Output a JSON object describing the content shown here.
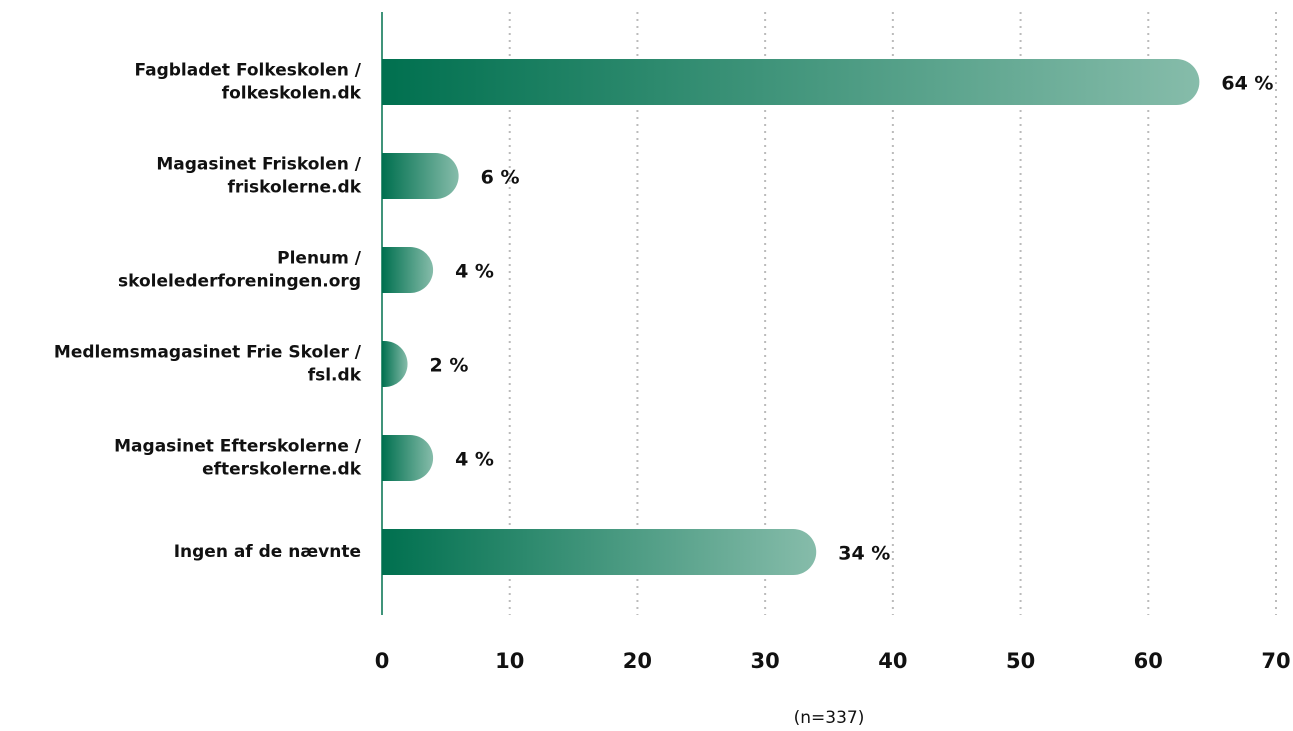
{
  "chart_data": {
    "type": "barh",
    "categories": [
      [
        "Fagbladet Folkeskolen /",
        "folkeskolen.dk"
      ],
      [
        "Magasinet Friskolen /",
        "friskolerne.dk"
      ],
      [
        "Plenum /",
        "skolelederforeningen.org"
      ],
      [
        "Medlemsmagasinet Frie Skoler /",
        "fsl.dk"
      ],
      [
        "Magasinet Efterskolerne /",
        "efterskolerne.dk"
      ],
      [
        "Ingen af de nævnte"
      ]
    ],
    "values": [
      64,
      6,
      4,
      2,
      4,
      34
    ],
    "value_labels": [
      "64 %",
      "6 %",
      "4 %",
      "2 %",
      "4 %",
      "34 %"
    ],
    "colors": [
      "#00704f",
      "#86bcaa"
    ],
    "xlim": [
      0,
      70
    ],
    "xticks": [
      0,
      10,
      20,
      30,
      40,
      50,
      60,
      70
    ],
    "grid": true,
    "annotation": "(n=337)"
  }
}
